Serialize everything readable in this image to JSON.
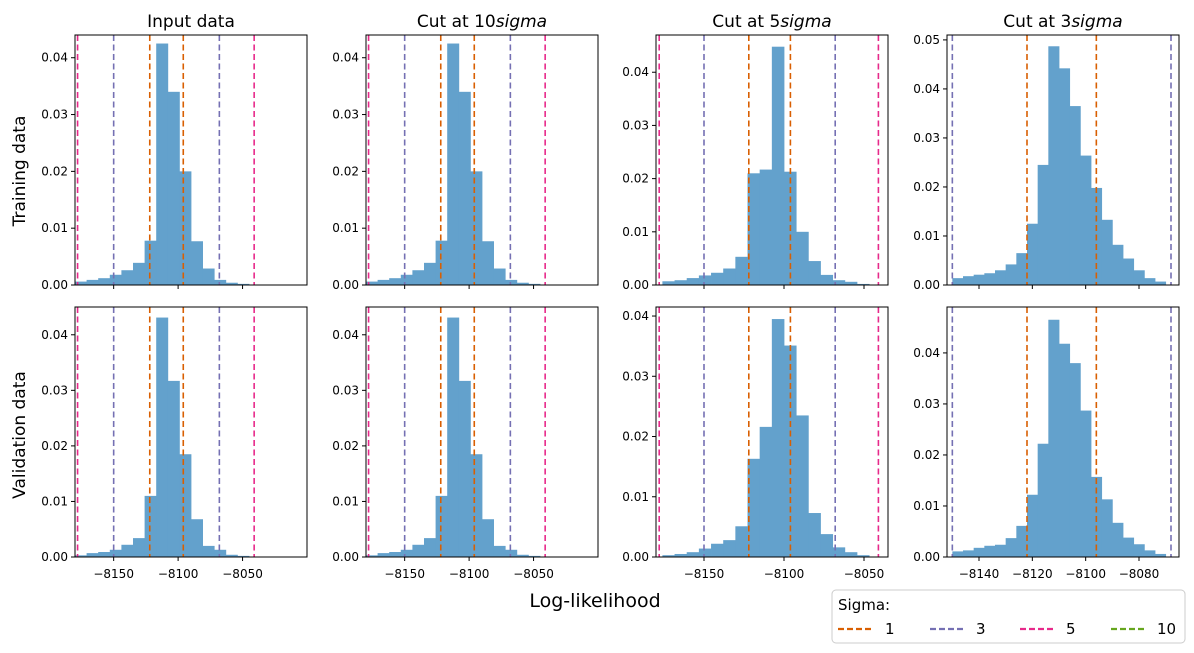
{
  "figure": {
    "xlabel": "Log-likelihood",
    "row_labels": [
      "Training data",
      "Validation data"
    ],
    "col_titles": [
      "Input data",
      "Cut at 10",
      "Cut at 5",
      "Cut at 3"
    ],
    "col_title_suffix": [
      "",
      "sigma",
      "sigma",
      "sigma"
    ],
    "legend": {
      "title": "Sigma:",
      "entries": [
        {
          "label": "1",
          "color": "#d95f02"
        },
        {
          "label": "3",
          "color": "#7570b3"
        },
        {
          "label": "5",
          "color": "#e7298a"
        },
        {
          "label": "10",
          "color": "#66a61e"
        }
      ]
    },
    "bar_color": "#63a1cc"
  },
  "chart_data": [
    {
      "type": "bar",
      "title": "Input data",
      "row": "Training data",
      "xlim": [
        -8180,
        -8000
      ],
      "ylim": [
        0,
        0.044
      ],
      "yticks": [
        0,
        0.01,
        0.02,
        0.03,
        0.04
      ],
      "xticks": [
        -8150,
        -8100,
        -8050
      ],
      "show_xticklabels": false,
      "bins": [
        [
          -8175.5,
          0.0006
        ],
        [
          -8166.5,
          0.0009
        ],
        [
          -8157.5,
          0.0012
        ],
        [
          -8148.5,
          0.0018
        ],
        [
          -8139.5,
          0.0026
        ],
        [
          -8130.5,
          0.0039
        ],
        [
          -8121.5,
          0.0078
        ],
        [
          -8112.5,
          0.0425
        ],
        [
          -8103.5,
          0.034
        ],
        [
          -8094.5,
          0.02
        ],
        [
          -8085.5,
          0.0077
        ],
        [
          -8076.5,
          0.0029
        ],
        [
          -8067.5,
          0.0009
        ],
        [
          -8058.5,
          0.0004
        ],
        [
          -8049.5,
          0.0002
        ]
      ],
      "sigma_lines": [
        {
          "sigma": "1",
          "x": [
            -8122,
            -8096
          ]
        },
        {
          "sigma": "3",
          "x": [
            -8150,
            -8068
          ]
        },
        {
          "sigma": "5",
          "x": [
            -8178,
            -8041
          ]
        }
      ]
    },
    {
      "type": "bar",
      "title": "Cut at 10sigma",
      "row": "Training data",
      "xlim": [
        -8180,
        -8000
      ],
      "ylim": [
        0,
        0.044
      ],
      "yticks": [
        0,
        0.01,
        0.02,
        0.03,
        0.04
      ],
      "xticks": [
        -8150,
        -8100,
        -8050
      ],
      "show_xticklabels": false,
      "bins": [
        [
          -8175.5,
          0.0006
        ],
        [
          -8166.5,
          0.0009
        ],
        [
          -8157.5,
          0.0012
        ],
        [
          -8148.5,
          0.0018
        ],
        [
          -8139.5,
          0.0026
        ],
        [
          -8130.5,
          0.0039
        ],
        [
          -8121.5,
          0.0078
        ],
        [
          -8112.5,
          0.0425
        ],
        [
          -8103.5,
          0.034
        ],
        [
          -8094.5,
          0.02
        ],
        [
          -8085.5,
          0.0077
        ],
        [
          -8076.5,
          0.0029
        ],
        [
          -8067.5,
          0.0009
        ],
        [
          -8058.5,
          0.0004
        ],
        [
          -8049.5,
          0.0002
        ]
      ],
      "sigma_lines": [
        {
          "sigma": "1",
          "x": [
            -8122,
            -8096
          ]
        },
        {
          "sigma": "3",
          "x": [
            -8150,
            -8068
          ]
        },
        {
          "sigma": "5",
          "x": [
            -8178,
            -8041
          ]
        }
      ]
    },
    {
      "type": "bar",
      "title": "Cut at 5sigma",
      "row": "Training data",
      "xlim": [
        -8180,
        -8035
      ],
      "ylim": [
        0,
        0.047
      ],
      "yticks": [
        0,
        0.01,
        0.02,
        0.03,
        0.04
      ],
      "xticks": [
        -8150,
        -8100,
        -8050
      ],
      "show_xticklabels": false,
      "bins": [
        [
          -8172.2,
          0.0007
        ],
        [
          -8164.6,
          0.0009
        ],
        [
          -8157,
          0.0013
        ],
        [
          -8149.4,
          0.0018
        ],
        [
          -8141.8,
          0.0023
        ],
        [
          -8134.2,
          0.0031
        ],
        [
          -8126.6,
          0.0053
        ],
        [
          -8119,
          0.021
        ],
        [
          -8111.4,
          0.0217
        ],
        [
          -8103.8,
          0.0448
        ],
        [
          -8096.2,
          0.0213
        ],
        [
          -8088.6,
          0.01
        ],
        [
          -8081,
          0.0045
        ],
        [
          -8073.4,
          0.0019
        ],
        [
          -8065.8,
          0.0009
        ],
        [
          -8058.2,
          0.0006
        ],
        [
          -8050.6,
          0.0002
        ]
      ],
      "sigma_lines": [
        {
          "sigma": "1",
          "x": [
            -8122,
            -8096
          ]
        },
        {
          "sigma": "3",
          "x": [
            -8150,
            -8068
          ]
        },
        {
          "sigma": "5",
          "x": [
            -8178,
            -8041
          ]
        }
      ]
    },
    {
      "type": "bar",
      "title": "Cut at 3sigma",
      "row": "Training data",
      "xlim": [
        -8152,
        -8065
      ],
      "ylim": [
        0,
        0.051
      ],
      "yticks": [
        0,
        0.01,
        0.02,
        0.03,
        0.04,
        0.05
      ],
      "xticks": [
        -8140,
        -8120,
        -8100,
        -8080
      ],
      "show_xticklabels": false,
      "bins": [
        [
          -8148,
          0.0014
        ],
        [
          -8144,
          0.0018
        ],
        [
          -8140,
          0.0021
        ],
        [
          -8136,
          0.0024
        ],
        [
          -8132,
          0.003
        ],
        [
          -8128,
          0.0042
        ],
        [
          -8124,
          0.0065
        ],
        [
          -8120,
          0.0125
        ],
        [
          -8116,
          0.0245
        ],
        [
          -8112,
          0.0487
        ],
        [
          -8108,
          0.0442
        ],
        [
          -8104,
          0.0365
        ],
        [
          -8100,
          0.0264
        ],
        [
          -8096,
          0.0198
        ],
        [
          -8092,
          0.0133
        ],
        [
          -8088,
          0.0082
        ],
        [
          -8084,
          0.0054
        ],
        [
          -8080,
          0.003
        ],
        [
          -8076,
          0.0014
        ],
        [
          -8072,
          0.0007
        ]
      ],
      "sigma_lines": [
        {
          "sigma": "1",
          "x": [
            -8122,
            -8096
          ]
        },
        {
          "sigma": "3",
          "x": [
            -8150,
            -8068
          ]
        }
      ]
    },
    {
      "type": "bar",
      "title": "Input data",
      "row": "Validation data",
      "xlim": [
        -8180,
        -8000
      ],
      "ylim": [
        0,
        0.045
      ],
      "yticks": [
        0,
        0.01,
        0.02,
        0.03,
        0.04
      ],
      "xticks": [
        -8150,
        -8100,
        -8050
      ],
      "show_xticklabels": true,
      "bins": [
        [
          -8175.5,
          0.0003
        ],
        [
          -8166.5,
          0.0007
        ],
        [
          -8157.5,
          0.0009
        ],
        [
          -8148.5,
          0.0013
        ],
        [
          -8139.5,
          0.0022
        ],
        [
          -8130.5,
          0.0034
        ],
        [
          -8121.5,
          0.011
        ],
        [
          -8112.5,
          0.0431
        ],
        [
          -8103.5,
          0.0317
        ],
        [
          -8094.5,
          0.0185
        ],
        [
          -8085.5,
          0.0068
        ],
        [
          -8076.5,
          0.002
        ],
        [
          -8067.5,
          0.0013
        ],
        [
          -8058.5,
          0.0004
        ],
        [
          -8049.5,
          0.0002
        ]
      ],
      "sigma_lines": [
        {
          "sigma": "1",
          "x": [
            -8122,
            -8096
          ]
        },
        {
          "sigma": "3",
          "x": [
            -8150,
            -8068
          ]
        },
        {
          "sigma": "5",
          "x": [
            -8178,
            -8041
          ]
        }
      ]
    },
    {
      "type": "bar",
      "title": "Cut at 10sigma",
      "row": "Validation data",
      "xlim": [
        -8180,
        -8000
      ],
      "ylim": [
        0,
        0.045
      ],
      "yticks": [
        0,
        0.01,
        0.02,
        0.03,
        0.04
      ],
      "xticks": [
        -8150,
        -8100,
        -8050
      ],
      "show_xticklabels": true,
      "bins": [
        [
          -8175.5,
          0.0003
        ],
        [
          -8166.5,
          0.0007
        ],
        [
          -8157.5,
          0.0009
        ],
        [
          -8148.5,
          0.0013
        ],
        [
          -8139.5,
          0.0022
        ],
        [
          -8130.5,
          0.0034
        ],
        [
          -8121.5,
          0.011
        ],
        [
          -8112.5,
          0.0431
        ],
        [
          -8103.5,
          0.0317
        ],
        [
          -8094.5,
          0.0185
        ],
        [
          -8085.5,
          0.0068
        ],
        [
          -8076.5,
          0.002
        ],
        [
          -8067.5,
          0.0013
        ],
        [
          -8058.5,
          0.0004
        ],
        [
          -8049.5,
          0.0002
        ]
      ],
      "sigma_lines": [
        {
          "sigma": "1",
          "x": [
            -8122,
            -8096
          ]
        },
        {
          "sigma": "3",
          "x": [
            -8150,
            -8068
          ]
        },
        {
          "sigma": "5",
          "x": [
            -8178,
            -8041
          ]
        }
      ]
    },
    {
      "type": "bar",
      "title": "Cut at 5sigma",
      "row": "Validation data",
      "xlim": [
        -8180,
        -8035
      ],
      "ylim": [
        0,
        0.0415
      ],
      "yticks": [
        0,
        0.01,
        0.02,
        0.03,
        0.04
      ],
      "xticks": [
        -8150,
        -8100,
        -8050
      ],
      "show_xticklabels": true,
      "bins": [
        [
          -8172.2,
          0.0003
        ],
        [
          -8164.6,
          0.0005
        ],
        [
          -8157,
          0.0008
        ],
        [
          -8149.4,
          0.0014
        ],
        [
          -8141.8,
          0.0022
        ],
        [
          -8134.2,
          0.0028
        ],
        [
          -8126.6,
          0.0051
        ],
        [
          -8119,
          0.0163
        ],
        [
          -8111.4,
          0.0216
        ],
        [
          -8103.8,
          0.0395
        ],
        [
          -8096.2,
          0.0351
        ],
        [
          -8088.6,
          0.0235
        ],
        [
          -8081,
          0.0073
        ],
        [
          -8073.4,
          0.0038
        ],
        [
          -8065.8,
          0.0016
        ],
        [
          -8058.2,
          0.0008
        ],
        [
          -8050.6,
          0.0003
        ]
      ],
      "sigma_lines": [
        {
          "sigma": "1",
          "x": [
            -8122,
            -8096
          ]
        },
        {
          "sigma": "3",
          "x": [
            -8150,
            -8068
          ]
        },
        {
          "sigma": "5",
          "x": [
            -8178,
            -8041
          ]
        }
      ]
    },
    {
      "type": "bar",
      "title": "Cut at 3sigma",
      "row": "Validation data",
      "xlim": [
        -8152,
        -8065
      ],
      "ylim": [
        0,
        0.049
      ],
      "yticks": [
        0,
        0.01,
        0.02,
        0.03,
        0.04
      ],
      "xticks": [
        -8140,
        -8120,
        -8100,
        -8080
      ],
      "show_xticklabels": true,
      "bins": [
        [
          -8148,
          0.0011
        ],
        [
          -8144,
          0.0013
        ],
        [
          -8140,
          0.0018
        ],
        [
          -8136,
          0.0022
        ],
        [
          -8132,
          0.0024
        ],
        [
          -8128,
          0.0037
        ],
        [
          -8124,
          0.0061
        ],
        [
          -8120,
          0.0122
        ],
        [
          -8116,
          0.0222
        ],
        [
          -8112,
          0.0465
        ],
        [
          -8108,
          0.0418
        ],
        [
          -8104,
          0.038
        ],
        [
          -8100,
          0.0287
        ],
        [
          -8096,
          0.0157
        ],
        [
          -8092,
          0.0113
        ],
        [
          -8088,
          0.0067
        ],
        [
          -8084,
          0.0038
        ],
        [
          -8080,
          0.0025
        ],
        [
          -8076,
          0.0013
        ],
        [
          -8072,
          0.0006
        ]
      ],
      "sigma_lines": [
        {
          "sigma": "1",
          "x": [
            -8122,
            -8096
          ]
        },
        {
          "sigma": "3",
          "x": [
            -8150,
            -8068
          ]
        }
      ]
    }
  ]
}
